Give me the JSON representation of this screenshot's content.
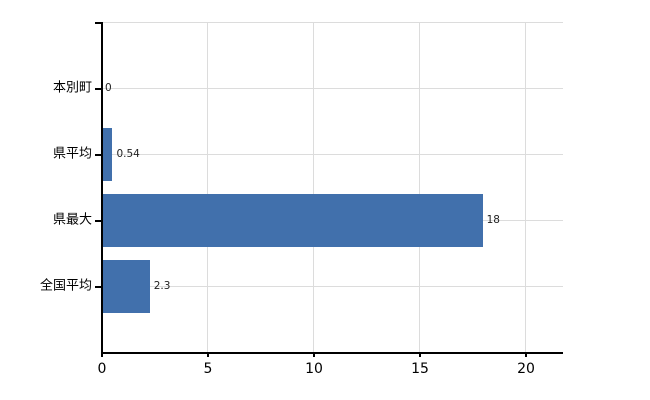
{
  "chart_data": {
    "type": "bar",
    "orientation": "horizontal",
    "title": "",
    "xlabel": "",
    "ylabel": "",
    "categories": [
      "本別町",
      "県平均",
      "県最大",
      "全国平均"
    ],
    "values": [
      0,
      0.54,
      18,
      2.3
    ],
    "value_labels": [
      "0",
      "0.54",
      "18",
      "2.3"
    ],
    "x_ticks": [
      0,
      5,
      10,
      15,
      20
    ],
    "x_tick_labels": [
      "0",
      "5",
      "10",
      "15",
      "20"
    ],
    "xlim": [
      0,
      21.7
    ],
    "grid": true,
    "legend": false,
    "colors": {
      "bar": "#4170ac",
      "gridline": "#dcdcdc",
      "axis": "#000000",
      "category_text": "#000000",
      "tick_text": "#000000",
      "value_text": "#1f1f1f",
      "background": "#ffffff"
    }
  }
}
